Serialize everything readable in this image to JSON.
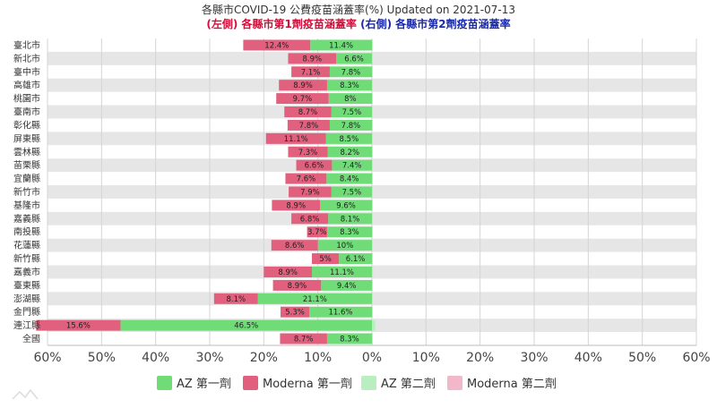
{
  "chart_data": {
    "type": "bar",
    "orientation": "horizontal-diverging",
    "title": "各縣市COVID-19 公費疫苗涵蓋率(%) Updated on 2021-07-13",
    "subtitle_left": "(左側) 各縣市第1劑疫苗涵蓋率",
    "subtitle_right": "(右側) 各縣市第2劑疫苗涵蓋率",
    "colors": {
      "subtitle_left": "#d0103a",
      "subtitle_right": "#1a2aa8",
      "az_dose1": "#6fdc78",
      "moderna_dose1": "#e0607e",
      "az_dose2": "#b9efc0",
      "moderna_dose2": "#f2b7c8",
      "band": "#e6e6e6"
    },
    "xlim": [
      -60,
      60
    ],
    "x_ticks": [
      "60%",
      "50%",
      "40%",
      "30%",
      "20%",
      "10%",
      "0%",
      "10%",
      "20%",
      "30%",
      "40%",
      "50%",
      "60%"
    ],
    "grid": true,
    "legend_position": "bottom",
    "categories": [
      "臺北市",
      "新北市",
      "臺中市",
      "高雄市",
      "桃園市",
      "臺南市",
      "彰化縣",
      "屏東縣",
      "雲林縣",
      "苗栗縣",
      "宜蘭縣",
      "新竹市",
      "基隆市",
      "嘉義縣",
      "南投縣",
      "花蓮縣",
      "新竹縣",
      "嘉義市",
      "臺東縣",
      "澎湖縣",
      "金門縣",
      "連江縣",
      "全國"
    ],
    "series": [
      {
        "name": "AZ 第一劑",
        "side": "left",
        "values": [
          11.4,
          6.6,
          7.8,
          8.3,
          8,
          7.5,
          7.8,
          8.5,
          8.2,
          7.4,
          8.4,
          7.5,
          9.6,
          8.1,
          8.3,
          10,
          6.1,
          11.1,
          9.4,
          21.1,
          11.6,
          46.5,
          8.3
        ]
      },
      {
        "name": "Moderna 第一劑",
        "side": "left",
        "values": [
          12.4,
          8.9,
          7.1,
          8.9,
          9.7,
          8.7,
          7.8,
          11.1,
          7.3,
          6.6,
          7.6,
          7.9,
          8.9,
          6.8,
          3.7,
          8.6,
          5,
          8.9,
          8.9,
          8.1,
          5.3,
          15.6,
          8.7
        ]
      },
      {
        "name": "AZ 第二劑",
        "side": "right",
        "values": [
          0.2,
          0.1,
          0.1,
          0.1,
          0.1,
          0.1,
          0.1,
          0.1,
          0.1,
          0.1,
          0.1,
          0.1,
          0.1,
          0.1,
          0.1,
          0.1,
          0.1,
          0.2,
          0.1,
          0.1,
          0.1,
          0.6,
          0.1
        ]
      },
      {
        "name": "Moderna 第二劑",
        "side": "right",
        "values": [
          0,
          0,
          0,
          0,
          0,
          0,
          0,
          0,
          0,
          0,
          0,
          0,
          0,
          0,
          0,
          0,
          0,
          0,
          0,
          0,
          0,
          0,
          0
        ]
      }
    ]
  }
}
